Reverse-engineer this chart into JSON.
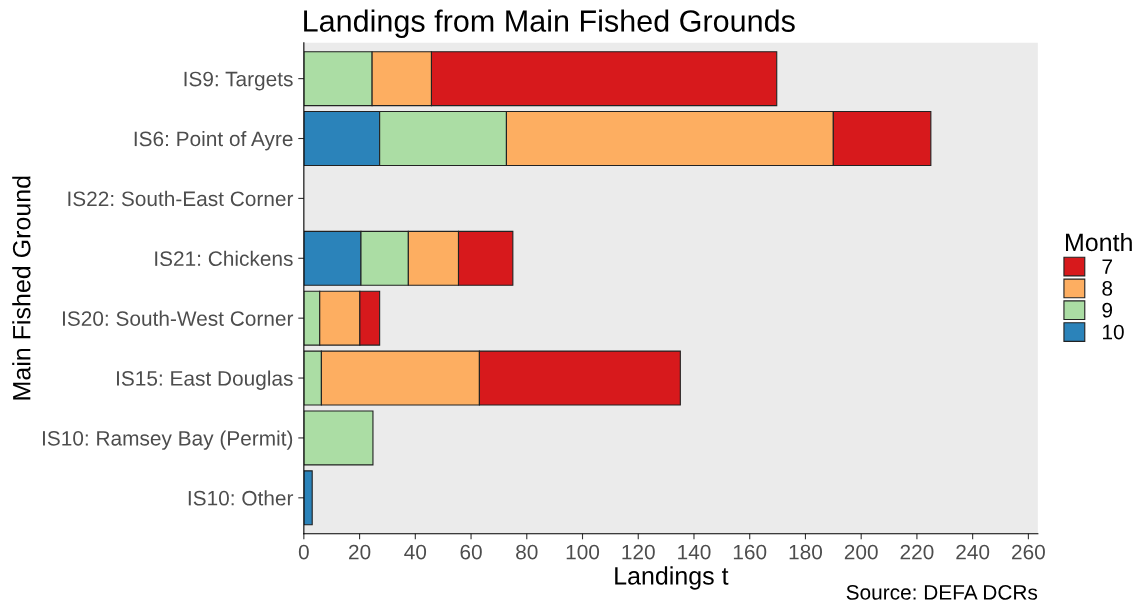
{
  "chart_data": {
    "type": "bar",
    "orientation": "horizontal",
    "stacked": true,
    "title": "Landings from Main Fished Grounds",
    "xlabel": "Landings t",
    "ylabel": "Main Fished Ground",
    "legend_title": "Month",
    "legend": "right",
    "grid": false,
    "annotations": [
      "Source: DEFA DCRs"
    ],
    "categories": [
      "IS9: Targets",
      "IS6: Point of Ayre",
      "IS22: South-East Corner",
      "IS21: Chickens",
      "IS20: South-West Corner",
      "IS15: East Douglas",
      "IS10: Ramsey Bay (Permit)",
      "IS10: Other"
    ],
    "xlim": [
      0,
      263.4
    ],
    "xticks": [
      0,
      20,
      40,
      60,
      80,
      100,
      120,
      140,
      160,
      180,
      200,
      220,
      240,
      260
    ],
    "series": [
      {
        "name": "10",
        "color": "#2b83ba",
        "values": [
          null,
          27.2,
          null,
          20.5,
          null,
          null,
          null,
          3.0
        ]
      },
      {
        "name": "9",
        "color": "#abdda4",
        "values": [
          24.5,
          45.5,
          null,
          17.0,
          5.7,
          6.3,
          24.8,
          null
        ]
      },
      {
        "name": "8",
        "color": "#fdae61",
        "values": [
          21.3,
          117.3,
          null,
          18.0,
          14.4,
          56.7,
          null,
          null
        ]
      },
      {
        "name": "7",
        "color": "#d7191c",
        "values": [
          123.9,
          35.0,
          null,
          19.5,
          7.1,
          72.1,
          null,
          null
        ]
      }
    ]
  }
}
